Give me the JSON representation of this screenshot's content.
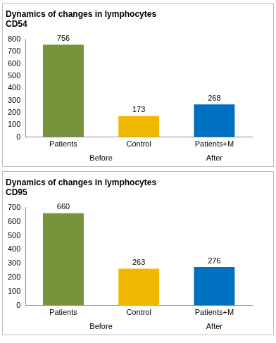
{
  "chart_data": [
    {
      "type": "bar",
      "title": [
        "Dynamics of changes in lymphocytes",
        "CD54"
      ],
      "categories": [
        "Patients",
        "Control",
        "Patients+M"
      ],
      "category_groups": [
        {
          "label": "Before",
          "categories": [
            "Patients",
            "Control"
          ]
        },
        {
          "label": "After",
          "categories": [
            "Patients+M"
          ]
        }
      ],
      "values": [
        756,
        173,
        268
      ],
      "colors": [
        "#77933c",
        "#f0b800",
        "#0070c0"
      ],
      "ylim": [
        0,
        800
      ],
      "yticks": [
        0,
        100,
        200,
        300,
        400,
        500,
        600,
        700,
        800
      ],
      "grid": false,
      "data_labels": true
    },
    {
      "type": "bar",
      "title": [
        "Dynamics of changes in lymphocytes",
        "CD95"
      ],
      "categories": [
        "Patients",
        "Control",
        "Patients+M"
      ],
      "category_groups": [
        {
          "label": "Before",
          "categories": [
            "Patients",
            "Control"
          ]
        },
        {
          "label": "After",
          "categories": [
            "Patients+M"
          ]
        }
      ],
      "values": [
        660,
        263,
        276
      ],
      "colors": [
        "#77933c",
        "#f0b800",
        "#0070c0"
      ],
      "ylim": [
        0,
        700
      ],
      "yticks": [
        0,
        100,
        200,
        300,
        400,
        500,
        600,
        700
      ],
      "grid": false,
      "data_labels": true
    }
  ]
}
